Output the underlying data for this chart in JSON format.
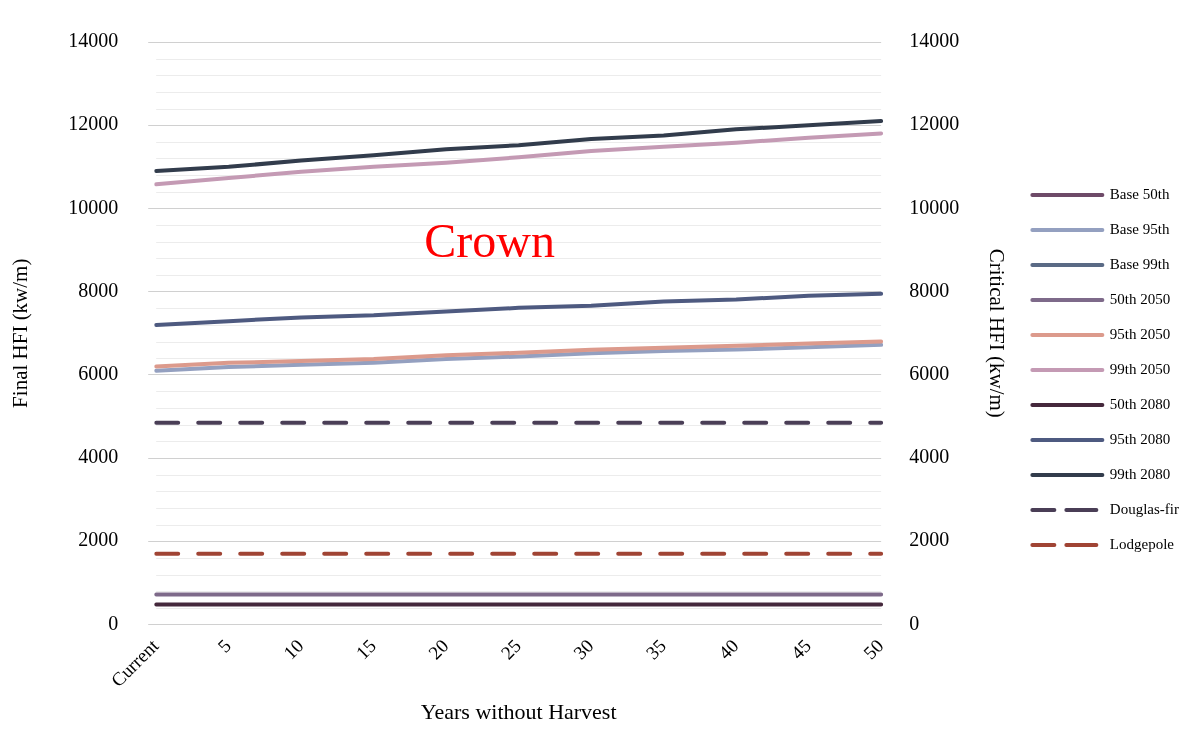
{
  "chart_data": {
    "type": "line",
    "xlabel": "Years without Harvest",
    "ylabel": "Final HFI (kw/m)",
    "y2label": "Critical HFI (kw/m)",
    "annotations": [
      "Crown"
    ],
    "categories": [
      "Current",
      "5",
      "10",
      "15",
      "20",
      "25",
      "30",
      "35",
      "40",
      "45",
      "50"
    ],
    "ylim": [
      0,
      14000
    ],
    "yticks": [
      0,
      2000,
      4000,
      6000,
      8000,
      10000,
      12000,
      14000
    ],
    "y2lim": [
      0,
      14000
    ],
    "y2ticks": [
      0,
      2000,
      4000,
      6000,
      8000,
      10000,
      12000,
      14000
    ],
    "grid": "y",
    "legend": "right",
    "marker": "none",
    "line_style": "solid",
    "series": [
      {
        "name": "Base 50th",
        "color": "#6e4a68",
        "values": [
          null,
          null,
          null,
          null,
          null,
          null,
          null,
          null,
          null,
          null,
          null
        ]
      },
      {
        "name": "Base 95th",
        "color": "#94a0c0",
        "values": [
          6100,
          6190,
          6240,
          6290,
          6380,
          6440,
          6520,
          6570,
          6610,
          6660,
          6720
        ]
      },
      {
        "name": "Base 99th",
        "color": "#5a6a85",
        "values": [
          null,
          null,
          null,
          null,
          null,
          null,
          null,
          null,
          null,
          null,
          null
        ]
      },
      {
        "name": "50th 2050",
        "color": "#7e6a8a",
        "values": [
          720,
          720,
          720,
          720,
          720,
          720,
          720,
          720,
          720,
          720,
          720
        ]
      },
      {
        "name": "95th 2050",
        "color": "#dc9a8c",
        "values": [
          6200,
          6290,
          6330,
          6380,
          6470,
          6530,
          6600,
          6650,
          6700,
          6750,
          6800
        ]
      },
      {
        "name": "99th 2050",
        "color": "#c49ab4",
        "values": [
          10580,
          10730,
          10880,
          11000,
          11100,
          11230,
          11380,
          11480,
          11580,
          11700,
          11800
        ]
      },
      {
        "name": "50th 2080",
        "color": "#45283c",
        "values": [
          480,
          480,
          480,
          480,
          480,
          480,
          480,
          480,
          480,
          480,
          480
        ]
      },
      {
        "name": "95th 2080",
        "color": "#4e5a80",
        "values": [
          7200,
          7290,
          7380,
          7430,
          7520,
          7610,
          7660,
          7760,
          7810,
          7900,
          7950
        ]
      },
      {
        "name": "99th 2080",
        "color": "#323c4c",
        "values": [
          10900,
          11000,
          11150,
          11280,
          11420,
          11520,
          11670,
          11750,
          11900,
          12000,
          12100
        ]
      },
      {
        "name": "Douglas-fir",
        "color": "#4a3e56",
        "line_style": "dashed",
        "values": [
          4850,
          4850,
          4850,
          4850,
          4850,
          4850,
          4850,
          4850,
          4850,
          4850,
          4850
        ]
      },
      {
        "name": "Lodgepole",
        "color": "#a04434",
        "line_style": "dashed",
        "values": [
          1700,
          1700,
          1700,
          1700,
          1700,
          1700,
          1700,
          1700,
          1700,
          1700,
          1700
        ]
      }
    ]
  }
}
